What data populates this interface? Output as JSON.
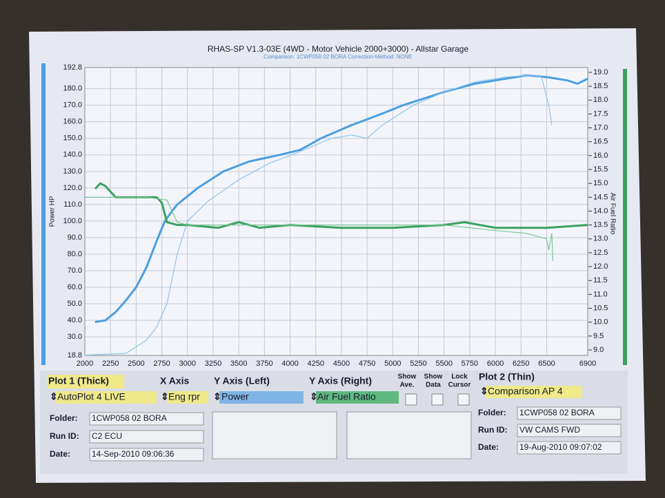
{
  "chart_data": {
    "type": "line",
    "title": "RHAS-SP V1.3-03E  (4WD - Motor Vehicle 2000+3000) - Allstar Garage",
    "subtitle": "Comparison: 1CWP058 02 BORA   Correction-Method: NONE",
    "y_label": "Power HP",
    "y2_label": "Air Fuel Ratio",
    "xlim": [
      2000,
      6900
    ],
    "ylim": [
      18.8,
      192.8
    ],
    "y2lim": [
      9,
      19
    ],
    "xticks": [
      2000,
      2250,
      2500,
      2750,
      3000,
      3250,
      3500,
      3750,
      4000,
      4250,
      4500,
      4750,
      5000,
      5250,
      5500,
      5750,
      6000,
      6250,
      6500,
      6900
    ],
    "yticks": [
      18.8,
      {
        "value": 30,
        "label": "30.0"
      },
      {
        "value": 40,
        "label": "40.0"
      },
      {
        "value": 50,
        "label": "50.0"
      },
      {
        "value": 60,
        "label": "60.0"
      },
      {
        "value": 70,
        "label": "70.0"
      },
      {
        "value": 80,
        "label": "80.0"
      },
      {
        "value": 90,
        "label": "90.0"
      },
      {
        "value": 100,
        "label": "100.0"
      },
      {
        "value": 110,
        "label": "110.0"
      },
      {
        "value": 120,
        "label": "120.0"
      },
      {
        "value": 130,
        "label": "130.0"
      },
      {
        "value": 140,
        "label": "140.0"
      },
      {
        "value": 150,
        "label": "150.0"
      },
      {
        "value": 160,
        "label": "160.0"
      },
      {
        "value": 170,
        "label": "170.0"
      },
      {
        "value": 180,
        "label": "180.0"
      },
      192.8
    ],
    "y2ticks": [
      {
        "value": 9,
        "label": "9.0"
      },
      9.5,
      {
        "value": 10,
        "label": "10.0"
      },
      10.5,
      {
        "value": 11,
        "label": "11.0"
      },
      11.5,
      {
        "value": 12,
        "label": "12.0"
      },
      12.5,
      {
        "value": 13,
        "label": "13.0"
      },
      13.5,
      {
        "value": 14,
        "label": "14.0"
      },
      14.5,
      {
        "value": 15,
        "label": "15.0"
      },
      15.5,
      {
        "value": 16,
        "label": "16.0"
      },
      16.5,
      {
        "value": 17,
        "label": "17.0"
      },
      17.5,
      {
        "value": 18,
        "label": "18.0"
      },
      18.5,
      {
        "value": 19,
        "label": "19.0"
      }
    ],
    "grid": true,
    "series": [
      {
        "color": "#4a9ee0",
        "line_weight": "thick",
        "x": [
          2100,
          2200,
          2300,
          2400,
          2500,
          2600,
          2700,
          2780,
          2850,
          2900,
          3000,
          3100,
          3350,
          3600,
          3900,
          4100,
          4300,
          4600,
          4900,
          5100,
          5500,
          5800,
          6100,
          6300,
          6500,
          6700,
          6800,
          6900
        ],
        "values": [
          39,
          40,
          45,
          52,
          60,
          72,
          88,
          100,
          106,
          110,
          115,
          120,
          130,
          136,
          140,
          143,
          150,
          158,
          165,
          170,
          178,
          183,
          186,
          188,
          187,
          185,
          183,
          186
        ]
      },
      {
        "color": "#8ec4ec",
        "line_weight": "thin",
        "x": [
          2000,
          2400,
          2600,
          2700,
          2800,
          2900,
          3000,
          3200,
          3500,
          3800,
          4100,
          4400,
          4600,
          4750,
          4900,
          5200,
          5500,
          5800,
          6100,
          6300,
          6450,
          6520,
          6550
        ],
        "values": [
          19,
          20,
          28,
          36,
          50,
          80,
          100,
          112,
          125,
          135,
          142,
          150,
          152,
          150,
          158,
          170,
          178,
          184,
          187,
          188,
          187,
          170,
          158
        ]
      },
      {
        "color": "#3aa060",
        "line_weight": "thick",
        "axis": "y2",
        "x": [
          2100,
          2150,
          2200,
          2300,
          2500,
          2700,
          2750,
          2800,
          2900,
          3000,
          3300,
          3500,
          3700,
          4000,
          4500,
          5000,
          5500,
          5700,
          6000,
          6500,
          6900
        ],
        "values": [
          14.8,
          15.0,
          14.9,
          14.5,
          14.5,
          14.5,
          14.3,
          13.6,
          13.5,
          13.5,
          13.4,
          13.6,
          13.4,
          13.5,
          13.4,
          13.4,
          13.5,
          13.6,
          13.4,
          13.4,
          13.5
        ]
      },
      {
        "color": "#7cc496",
        "line_weight": "thin",
        "axis": "y2",
        "x": [
          2000,
          2300,
          2600,
          2800,
          2900,
          3000,
          3500,
          4500,
          5500,
          6000,
          6300,
          6500,
          6520,
          6550,
          6560
        ],
        "values": [
          14.5,
          14.5,
          14.5,
          14.4,
          13.6,
          13.5,
          13.5,
          13.5,
          13.5,
          13.3,
          13.2,
          13.0,
          12.6,
          13.2,
          12.2
        ]
      }
    ]
  },
  "panel": {
    "plot1": {
      "heading": "Plot 1 (Thick)",
      "select": "AutoPlot 4 LIVE",
      "folder": "1CWP058 02 BORA",
      "run_id": "C2 ECU",
      "date": "14-Sep-2010  09:06:36"
    },
    "x_axis": {
      "heading": "X Axis",
      "select": "Eng rpr"
    },
    "y_left": {
      "heading": "Y Axis (Left)",
      "select": "Power"
    },
    "y_right": {
      "heading": "Y Axis (Right)",
      "select": "Air Fuel Ratio"
    },
    "checks": [
      [
        "Show",
        "Ave."
      ],
      [
        "Show",
        "Data"
      ],
      [
        "Lock",
        "Cursor"
      ]
    ],
    "plot2": {
      "heading": "Plot 2 (Thin)",
      "select": "Comparison AP 4",
      "folder": "1CWP058 02 BORA",
      "run_id": "VW CAMS FWD",
      "date": "19-Aug-2010  09:07:02"
    },
    "labels": {
      "folder": "Folder:",
      "run_id": "Run ID:",
      "date": "Date:"
    }
  }
}
